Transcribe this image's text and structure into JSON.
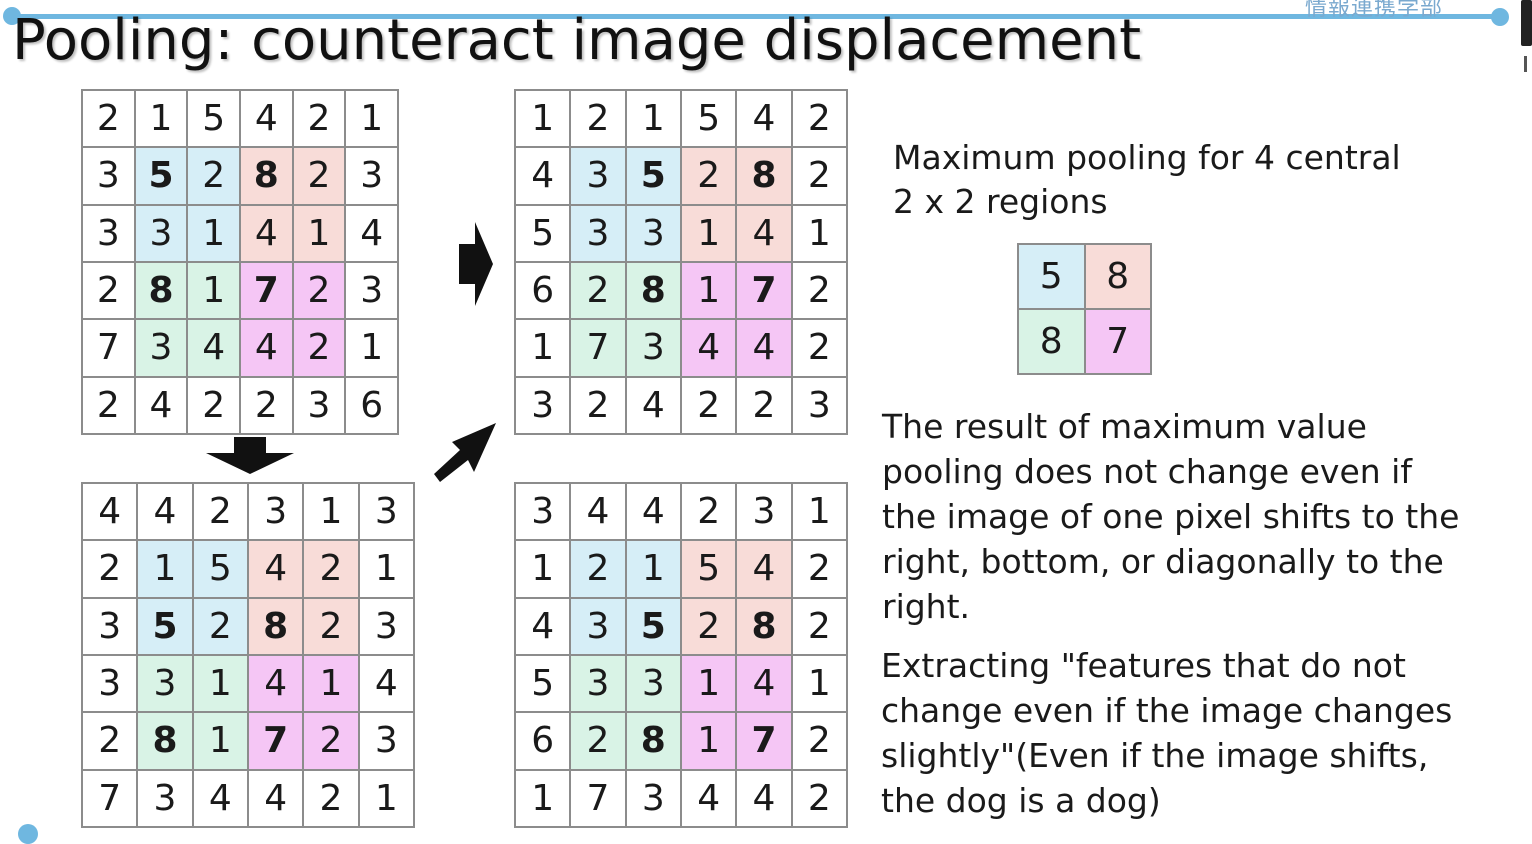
{
  "header": {
    "title": "Pooling: counteract image displacement",
    "badge_text": "情報連携学部"
  },
  "grids": {
    "original": [
      [
        "2",
        "1",
        "5",
        "4",
        "2",
        "1"
      ],
      [
        "3",
        "5",
        "2",
        "8",
        "2",
        "3"
      ],
      [
        "3",
        "3",
        "1",
        "4",
        "1",
        "4"
      ],
      [
        "2",
        "8",
        "1",
        "7",
        "2",
        "3"
      ],
      [
        "7",
        "3",
        "4",
        "4",
        "2",
        "1"
      ],
      [
        "2",
        "4",
        "2",
        "2",
        "3",
        "6"
      ]
    ],
    "shifted_right": [
      [
        "1",
        "2",
        "1",
        "5",
        "4",
        "2"
      ],
      [
        "4",
        "3",
        "5",
        "2",
        "8",
        "2"
      ],
      [
        "5",
        "3",
        "3",
        "1",
        "4",
        "1"
      ],
      [
        "6",
        "2",
        "8",
        "1",
        "7",
        "2"
      ],
      [
        "1",
        "7",
        "3",
        "4",
        "4",
        "2"
      ],
      [
        "3",
        "2",
        "4",
        "2",
        "2",
        "3"
      ]
    ],
    "shifted_down": [
      [
        "4",
        "4",
        "2",
        "3",
        "1",
        "3"
      ],
      [
        "2",
        "1",
        "5",
        "4",
        "2",
        "1"
      ],
      [
        "3",
        "5",
        "2",
        "8",
        "2",
        "3"
      ],
      [
        "3",
        "3",
        "1",
        "4",
        "1",
        "4"
      ],
      [
        "2",
        "8",
        "1",
        "7",
        "2",
        "3"
      ],
      [
        "7",
        "3",
        "4",
        "4",
        "2",
        "1"
      ]
    ],
    "shifted_diagonal": [
      [
        "3",
        "4",
        "4",
        "2",
        "3",
        "1"
      ],
      [
        "1",
        "2",
        "1",
        "5",
        "4",
        "2"
      ],
      [
        "4",
        "3",
        "5",
        "2",
        "8",
        "2"
      ],
      [
        "5",
        "3",
        "3",
        "1",
        "4",
        "1"
      ],
      [
        "6",
        "2",
        "8",
        "1",
        "7",
        "2"
      ],
      [
        "1",
        "7",
        "3",
        "4",
        "4",
        "2"
      ]
    ],
    "pooled": [
      [
        "5",
        "8"
      ],
      [
        "8",
        "7"
      ]
    ]
  },
  "description": {
    "pooling_note": [
      "Maximum pooling for 4 central",
      "2 x 2 regions"
    ],
    "result_note": [
      "The result of maximum value",
      "pooling does not change even if",
      "the image of one pixel shifts to the",
      "right, bottom, or diagonally to the",
      "right."
    ],
    "feature_note": [
      "Extracting \"features that do not",
      "change even if the image changes",
      "slightly\"(Even if the image shifts,",
      "the dog is a dog)"
    ]
  },
  "colors": {
    "accent_line": "#6fb7e0",
    "region_top_left": "#d6eef7",
    "region_top_right": "#f8dcd8",
    "region_bottom_left": "#d9f3e6",
    "region_bottom_right": "#f5c6f5"
  },
  "icons": [
    "arrow-right-icon",
    "arrow-down-icon",
    "arrow-diagonal-icon"
  ]
}
